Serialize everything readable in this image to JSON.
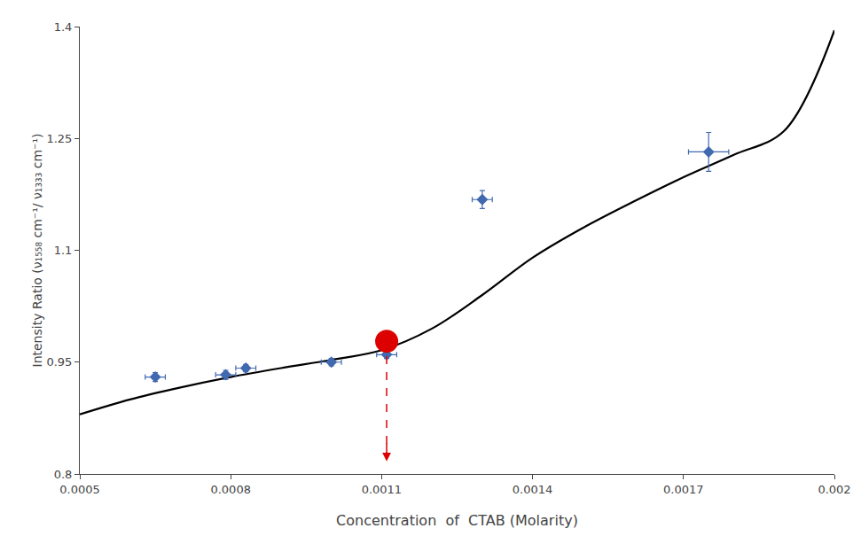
{
  "chart_data": {
    "type": "scatter",
    "xlabel": "Concentration  of  CTAB (Molarity)",
    "ylabel": "Intensity Ratio (ν₁₅₅₈ cm⁻¹/ ν₁₃₃₃ cm⁻¹)",
    "xlim": [
      0.0005,
      0.002
    ],
    "ylim": [
      0.8,
      1.4
    ],
    "xticks": [
      0.0005,
      0.0008,
      0.0011,
      0.0014,
      0.0017,
      0.002
    ],
    "yticks": [
      0.8,
      0.95,
      1.1,
      1.25,
      1.4
    ],
    "grid": false,
    "series": [
      {
        "type": "line",
        "color": "#000000",
        "line_style": "solid",
        "x": [
          0.0005,
          0.0006,
          0.0007,
          0.0008,
          0.0009,
          0.001,
          0.0011,
          0.0012,
          0.0013,
          0.0014,
          0.0015,
          0.0016,
          0.0017,
          0.0018,
          0.0019,
          0.002
        ],
        "values": [
          0.88,
          0.9,
          0.916,
          0.93,
          0.942,
          0.953,
          0.966,
          0.995,
          1.04,
          1.09,
          1.13,
          1.165,
          1.198,
          1.228,
          1.26,
          1.395
        ]
      },
      {
        "type": "scatter",
        "marker": "diamond",
        "color": "#4169b0",
        "x": [
          0.00065,
          0.00079,
          0.00083,
          0.001,
          0.00111,
          0.0013,
          0.00175
        ],
        "values": [
          0.93,
          0.933,
          0.942,
          0.95,
          0.96,
          1.168,
          1.232
        ],
        "xerr": [
          2e-05,
          2e-05,
          2e-05,
          2e-05,
          2e-05,
          2e-05,
          4e-05
        ],
        "yerr": [
          0.006,
          0.006,
          0.005,
          0.005,
          0.005,
          0.012,
          0.026
        ]
      },
      {
        "type": "scatter",
        "marker": "circle",
        "color": "#dd0000",
        "x": [
          0.00111
        ],
        "values": [
          0.978
        ]
      }
    ],
    "annotations": [
      {
        "type": "arrow",
        "x": 0.00111,
        "y_start": 0.958,
        "y_end": 0.817,
        "color": "#dd0000",
        "line_style": "dash"
      }
    ]
  }
}
